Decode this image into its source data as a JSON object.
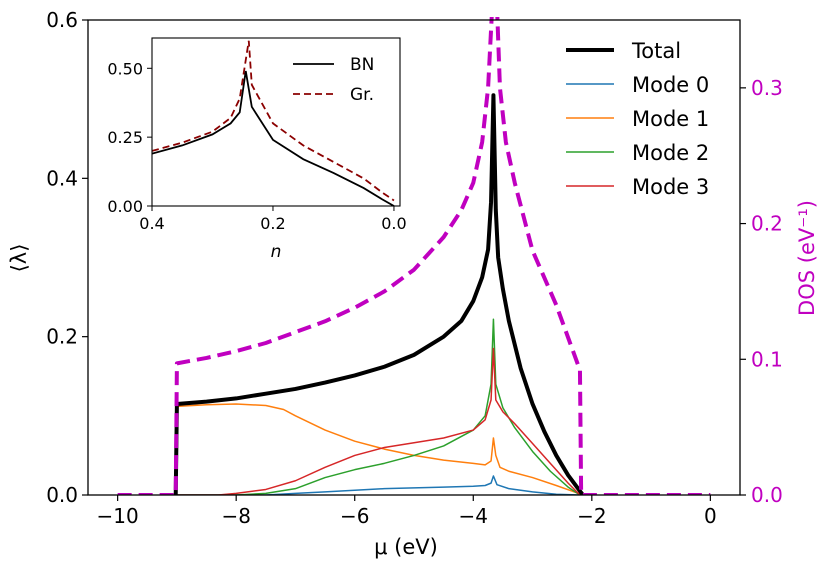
{
  "chart_data": {
    "type": "line",
    "main": {
      "xlabel": "μ (eV)",
      "ylabel": "⟨λ⟩",
      "ylabel_right": "DOS (eV⁻¹)",
      "xlim": [
        -10.5,
        0.5
      ],
      "ylim": [
        0,
        0.6
      ],
      "ylim_right": [
        0,
        0.35
      ],
      "xticks": [
        -10,
        -8,
        -6,
        -4,
        -2,
        0
      ],
      "xtick_labels": [
        "−10",
        "−8",
        "−6",
        "−4",
        "−2",
        "0"
      ],
      "yticks": [
        0.0,
        0.2,
        0.4,
        0.6
      ],
      "ytick_labels": [
        "0.0",
        "0.2",
        "0.4",
        "0.6"
      ],
      "yticks_right": [
        0.0,
        0.1,
        0.2,
        0.3
      ],
      "ytick_labels_right": [
        "0.0",
        "0.1",
        "0.2",
        "0.3"
      ],
      "legend_position": "top-right",
      "series": [
        {
          "name": "Total",
          "color": "#000000",
          "style": "solid",
          "width": 4,
          "x": [
            -9.02,
            -9.0,
            -8.5,
            -8,
            -7.5,
            -7,
            -6.5,
            -6,
            -5.5,
            -5,
            -4.5,
            -4.2,
            -4.0,
            -3.85,
            -3.75,
            -3.7,
            -3.66,
            -3.62,
            -3.58,
            -3.5,
            -3.4,
            -3.2,
            -3.0,
            -2.8,
            -2.6,
            -2.4,
            -2.2,
            -2.15
          ],
          "y": [
            0.0,
            0.115,
            0.118,
            0.122,
            0.128,
            0.134,
            0.142,
            0.151,
            0.162,
            0.177,
            0.2,
            0.22,
            0.245,
            0.275,
            0.31,
            0.37,
            0.505,
            0.36,
            0.3,
            0.26,
            0.22,
            0.16,
            0.115,
            0.08,
            0.05,
            0.025,
            0.005,
            0.0
          ]
        },
        {
          "name": "Mode 0",
          "color": "#1f77b4",
          "style": "solid",
          "width": 1.5,
          "x": [
            -9.0,
            -7.5,
            -7,
            -6.5,
            -6,
            -5.5,
            -5,
            -4.5,
            -4.0,
            -3.8,
            -3.7,
            -3.66,
            -3.6,
            -3.4,
            -3.0,
            -2.6,
            -2.2
          ],
          "y": [
            0.0,
            0.0,
            0.002,
            0.004,
            0.006,
            0.008,
            0.009,
            0.01,
            0.011,
            0.012,
            0.015,
            0.024,
            0.013,
            0.008,
            0.004,
            0.001,
            0.0
          ]
        },
        {
          "name": "Mode 1",
          "color": "#ff7f0e",
          "style": "solid",
          "width": 1.5,
          "x": [
            -9.02,
            -9.0,
            -8.5,
            -8,
            -7.5,
            -7.2,
            -7,
            -6.5,
            -6,
            -5.5,
            -5,
            -4.5,
            -4.0,
            -3.8,
            -3.7,
            -3.66,
            -3.62,
            -3.55,
            -3.4,
            -3.0,
            -2.6,
            -2.3,
            -2.15
          ],
          "y": [
            0.0,
            0.112,
            0.114,
            0.115,
            0.113,
            0.108,
            0.1,
            0.082,
            0.068,
            0.058,
            0.05,
            0.044,
            0.04,
            0.038,
            0.043,
            0.072,
            0.05,
            0.035,
            0.03,
            0.022,
            0.012,
            0.004,
            0.0
          ]
        },
        {
          "name": "Mode 2",
          "color": "#2ca02c",
          "style": "solid",
          "width": 1.5,
          "x": [
            -9.0,
            -8,
            -7.5,
            -7,
            -6.5,
            -6,
            -5.5,
            -5,
            -4.5,
            -4.0,
            -3.8,
            -3.7,
            -3.66,
            -3.62,
            -3.5,
            -3.3,
            -3.0,
            -2.7,
            -2.4,
            -2.2
          ],
          "y": [
            0.0,
            0.0,
            0.002,
            0.008,
            0.022,
            0.032,
            0.04,
            0.05,
            0.062,
            0.082,
            0.1,
            0.14,
            0.222,
            0.14,
            0.11,
            0.085,
            0.055,
            0.03,
            0.01,
            0.0
          ]
        },
        {
          "name": "Mode 3",
          "color": "#d62728",
          "style": "solid",
          "width": 1.5,
          "x": [
            -9.0,
            -8.3,
            -8,
            -7.5,
            -7,
            -6.5,
            -6,
            -5.5,
            -5,
            -4.5,
            -4.0,
            -3.8,
            -3.7,
            -3.66,
            -3.62,
            -3.5,
            -3.3,
            -3.0,
            -2.7,
            -2.4,
            -2.2
          ],
          "y": [
            0.0,
            0.0,
            0.002,
            0.007,
            0.018,
            0.035,
            0.05,
            0.06,
            0.066,
            0.072,
            0.082,
            0.095,
            0.12,
            0.185,
            0.12,
            0.105,
            0.09,
            0.065,
            0.04,
            0.015,
            0.0
          ]
        },
        {
          "name": "DOS",
          "axis": "right",
          "color": "#c000c0",
          "style": "dashed",
          "width": 4,
          "legend": false,
          "x": [
            -10,
            -9.02,
            -9.0,
            -8.5,
            -8,
            -7.5,
            -7,
            -6.5,
            -6,
            -5.5,
            -5,
            -4.5,
            -4.2,
            -4.0,
            -3.85,
            -3.75,
            -3.68,
            -3.6,
            -3.55,
            -3.45,
            -3.3,
            -3.0,
            -2.6,
            -2.2,
            -2.18,
            -2.1,
            0
          ],
          "y": [
            0.0,
            0.0,
            0.097,
            0.101,
            0.106,
            0.112,
            0.12,
            0.128,
            0.138,
            0.15,
            0.166,
            0.19,
            0.21,
            0.23,
            0.26,
            0.3,
            0.36,
            0.36,
            0.3,
            0.26,
            0.23,
            0.18,
            0.14,
            0.092,
            0.0,
            0.0,
            0.0
          ]
        }
      ]
    },
    "inset": {
      "type": "line",
      "xlabel": "n",
      "xlim": [
        0.4,
        -0.01
      ],
      "ylim": [
        0,
        0.61
      ],
      "xticks": [
        0.4,
        0.2,
        0.0
      ],
      "xtick_labels": [
        "0.4",
        "0.2",
        "0.0"
      ],
      "yticks": [
        0.0,
        0.25,
        0.5
      ],
      "ytick_labels": [
        "0.00",
        "0.25",
        "0.50"
      ],
      "legend_position": "top-right",
      "series": [
        {
          "name": "BN",
          "color": "#000000",
          "style": "solid",
          "width": 1.8,
          "x": [
            0.4,
            0.35,
            0.3,
            0.27,
            0.255,
            0.245,
            0.235,
            0.2,
            0.15,
            0.1,
            0.05,
            0.02,
            0.0
          ],
          "y": [
            0.19,
            0.22,
            0.26,
            0.3,
            0.34,
            0.49,
            0.36,
            0.24,
            0.17,
            0.12,
            0.065,
            0.025,
            0.0
          ]
        },
        {
          "name": "Gr.",
          "color": "#8b0000",
          "style": "dashed",
          "width": 1.8,
          "x": [
            0.4,
            0.35,
            0.3,
            0.27,
            0.255,
            0.24,
            0.235,
            0.2,
            0.15,
            0.1,
            0.05,
            0.02,
            0.0
          ],
          "y": [
            0.2,
            0.23,
            0.27,
            0.32,
            0.39,
            0.6,
            0.44,
            0.3,
            0.22,
            0.16,
            0.1,
            0.05,
            0.02
          ]
        }
      ]
    }
  }
}
